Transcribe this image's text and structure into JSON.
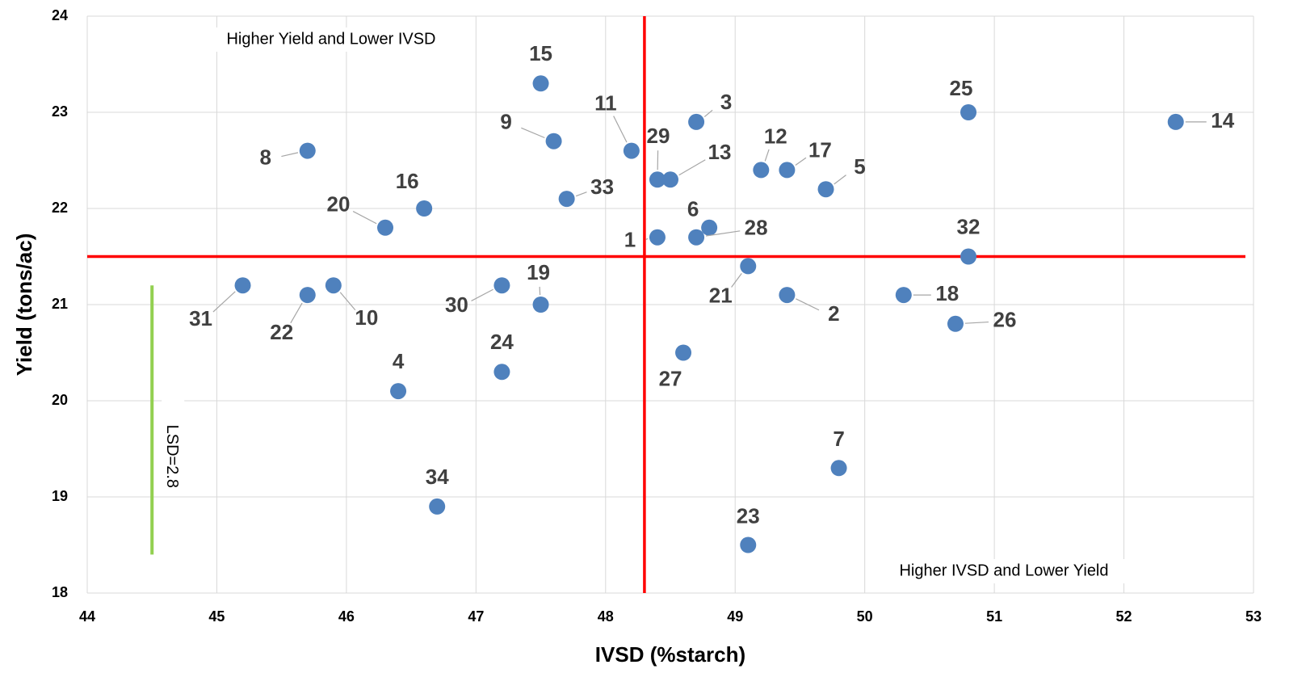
{
  "chart_data": {
    "type": "scatter",
    "x_label": "IVSD (%starch)",
    "y_label": "Yield (tons/ac)",
    "xlim": [
      44,
      53
    ],
    "ylim": [
      18,
      24
    ],
    "xticks": [
      44,
      45,
      46,
      47,
      48,
      49,
      50,
      51,
      52,
      53
    ],
    "yticks": [
      18,
      19,
      20,
      21,
      22,
      23,
      24
    ],
    "grid": true,
    "color": "#4f81bd",
    "series": [
      {
        "labels": [
          "15",
          "9",
          "11",
          "3",
          "29",
          "13",
          "12",
          "17",
          "5",
          "25",
          "14",
          "8",
          "16",
          "20",
          "33",
          "6",
          "28",
          "1",
          "32",
          "21",
          "31",
          "22",
          "10",
          "30",
          "19",
          "2",
          "18",
          "26",
          "27",
          "24",
          "4",
          "7",
          "34",
          "23"
        ],
        "x": [
          47.5,
          47.6,
          48.2,
          48.7,
          48.4,
          48.5,
          49.2,
          49.4,
          49.7,
          50.8,
          52.4,
          45.7,
          46.6,
          46.3,
          47.7,
          48.8,
          48.7,
          48.4,
          50.8,
          49.1,
          45.2,
          45.7,
          45.9,
          47.2,
          47.5,
          49.4,
          50.3,
          50.7,
          48.6,
          47.2,
          46.4,
          49.8,
          46.7,
          49.1
        ],
        "values": [
          23.3,
          22.7,
          22.6,
          22.9,
          22.3,
          22.3,
          22.4,
          22.4,
          22.2,
          23.0,
          22.9,
          22.6,
          22.0,
          21.8,
          22.1,
          21.8,
          21.7,
          21.7,
          21.5,
          21.4,
          21.2,
          21.1,
          21.2,
          21.2,
          21.0,
          21.1,
          21.1,
          20.8,
          20.5,
          20.3,
          20.1,
          19.3,
          18.9,
          18.5
        ]
      }
    ],
    "reference_lines": {
      "x": 48.3,
      "y": 21.5,
      "color": "#ff0000"
    },
    "lsd": {
      "x": 44.5,
      "y0": 18.4,
      "y1": 21.2,
      "label": "LSD=2.8",
      "color": "#92d050"
    },
    "annotations": [
      "Higher Yield and Lower IVSD",
      "Higher IVSD and Lower Yield"
    ]
  }
}
